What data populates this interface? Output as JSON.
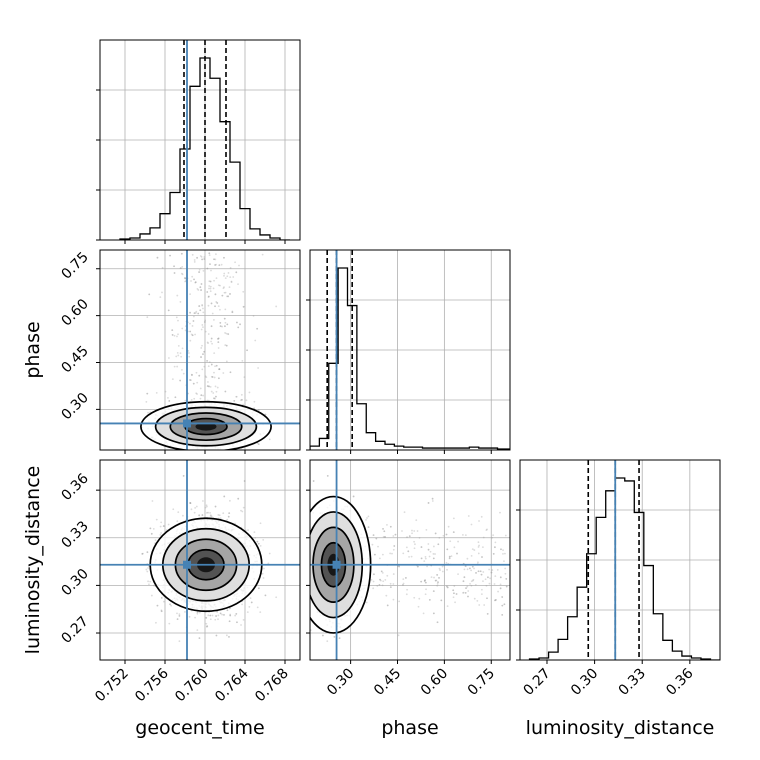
{
  "chart_data": {
    "type": "corner",
    "parameters": [
      "geocent_time",
      "phase",
      "luminosity_distance"
    ],
    "grid": true,
    "truth_color": "#4682b4",
    "hist_color": "#000000",
    "contour_color": "#000000",
    "point_color": "#9a9a9a",
    "ranges": {
      "geocent_time": [
        0.7495,
        0.7695
      ],
      "phase": [
        0.17,
        0.81
      ],
      "luminosity_distance": [
        0.253,
        0.379
      ]
    },
    "ticks": {
      "geocent_time": [
        0.752,
        0.756,
        0.76,
        0.764,
        0.768
      ],
      "phase": [
        0.3,
        0.45,
        0.6,
        0.75
      ],
      "luminosity_distance": [
        0.27,
        0.3,
        0.33,
        0.36
      ]
    },
    "tick_labels": {
      "geocent_time": [
        "0.752",
        "0.756",
        "0.760",
        "0.764",
        "0.768"
      ],
      "phase": [
        "0.30",
        "0.45",
        "0.60",
        "0.75"
      ],
      "luminosity_distance": [
        "0.27",
        "0.30",
        "0.33",
        "0.36"
      ]
    },
    "truths": {
      "geocent_time": 0.7582,
      "phase": 0.255,
      "luminosity_distance": 0.313
    },
    "quantiles": {
      "geocent_time": [
        0.7579,
        0.76,
        0.7621
      ],
      "phase": [
        0.225,
        0.255,
        0.305
      ],
      "luminosity_distance": [
        0.296,
        0.313,
        0.328
      ]
    },
    "histograms": {
      "geocent_time": {
        "bins": [
          0.7515,
          0.7525,
          0.7535,
          0.7545,
          0.7555,
          0.7565,
          0.7575,
          0.7585,
          0.7595,
          0.7605,
          0.7615,
          0.7625,
          0.7635,
          0.7645,
          0.7655,
          0.7665,
          0.7675
        ],
        "counts": [
          1,
          2,
          6,
          12,
          26,
          47,
          90,
          152,
          180,
          160,
          117,
          77,
          31,
          11,
          5,
          2,
          0
        ]
      },
      "phase": {
        "bins": [
          0.17,
          0.2,
          0.23,
          0.26,
          0.29,
          0.32,
          0.35,
          0.38,
          0.41,
          0.44,
          0.47,
          0.5,
          0.53,
          0.56,
          0.59,
          0.62,
          0.65,
          0.68,
          0.71,
          0.74,
          0.77,
          0.8
        ],
        "counts": [
          4,
          12,
          90,
          189,
          150,
          48,
          18,
          9,
          6,
          4,
          3,
          3,
          2,
          2,
          2,
          2,
          2,
          3,
          2,
          2,
          1,
          1
        ]
      },
      "luminosity_distance": {
        "bins": [
          0.259,
          0.265,
          0.271,
          0.277,
          0.283,
          0.289,
          0.295,
          0.301,
          0.307,
          0.313,
          0.319,
          0.325,
          0.331,
          0.337,
          0.343,
          0.349,
          0.355,
          0.361,
          0.367,
          0.373
        ],
        "counts": [
          1,
          2,
          8,
          21,
          44,
          74,
          108,
          145,
          172,
          185,
          182,
          150,
          96,
          47,
          20,
          9,
          4,
          2,
          1,
          0
        ]
      }
    },
    "posterior_peak": {
      "geocent_time": 0.7601,
      "phase": 0.245,
      "luminosity_distance": 0.313
    }
  },
  "figure": {
    "xlabels": {
      "col0": "geocent_time",
      "col1": "phase",
      "col2": "luminosity_distance"
    },
    "ylabels": {
      "row1": "phase",
      "row2": "luminosity_distance"
    }
  }
}
